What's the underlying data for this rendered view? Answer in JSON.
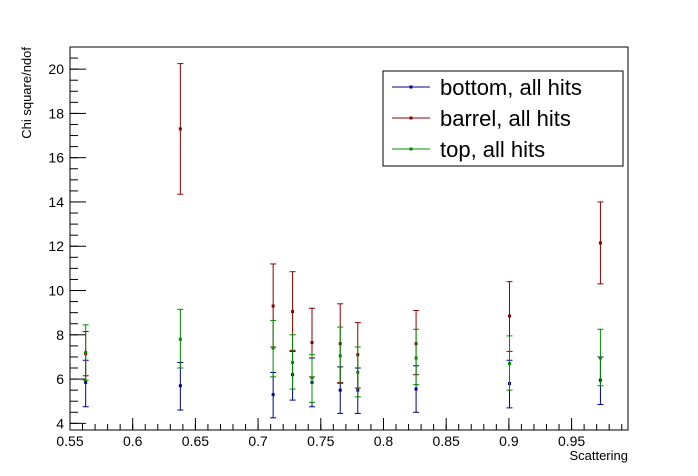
{
  "chart_data": {
    "type": "scatter",
    "xlabel": "Scattering",
    "ylabel": "Chi square/ndof",
    "xlim": [
      0.55,
      0.995
    ],
    "ylim": [
      3.7,
      21.0
    ],
    "x_ticks": [
      "0.55",
      "0.6",
      "0.65",
      "0.7",
      "0.75",
      "0.8",
      "0.85",
      "0.9",
      "0.95"
    ],
    "y_ticks": [
      "4",
      "6",
      "8",
      "10",
      "12",
      "14",
      "16",
      "18",
      "20"
    ],
    "legend_position": "top-right",
    "series": [
      {
        "name": "bottom, all hits",
        "color": "#00008b",
        "points": [
          {
            "x": 0.5625,
            "y": 5.85,
            "lo": 4.75,
            "hi": 6.85
          },
          {
            "x": 0.638,
            "y": 5.7,
            "lo": 4.6,
            "hi": 6.75
          },
          {
            "x": 0.712,
            "y": 5.3,
            "lo": 4.25,
            "hi": 6.3
          },
          {
            "x": 0.7275,
            "y": 6.2,
            "lo": 5.05,
            "hi": 7.25
          },
          {
            "x": 0.743,
            "y": 5.85,
            "lo": 4.75,
            "hi": 6.95
          },
          {
            "x": 0.7655,
            "y": 5.5,
            "lo": 4.45,
            "hi": 6.55
          },
          {
            "x": 0.7795,
            "y": 5.5,
            "lo": 4.45,
            "hi": 6.5
          },
          {
            "x": 0.826,
            "y": 5.55,
            "lo": 4.5,
            "hi": 6.6
          },
          {
            "x": 0.9005,
            "y": 5.8,
            "lo": 4.7,
            "hi": 6.85
          },
          {
            "x": 0.973,
            "y": 5.95,
            "lo": 4.85,
            "hi": 7.0
          }
        ]
      },
      {
        "name": "barrel, all hits",
        "color": "#8b0000",
        "points": [
          {
            "x": 0.5625,
            "y": 7.15,
            "lo": 6.15,
            "hi": 8.15
          },
          {
            "x": 0.638,
            "y": 17.3,
            "lo": 14.35,
            "hi": 20.25
          },
          {
            "x": 0.712,
            "y": 9.3,
            "lo": 7.45,
            "hi": 11.2
          },
          {
            "x": 0.7275,
            "y": 9.05,
            "lo": 7.3,
            "hi": 10.85
          },
          {
            "x": 0.743,
            "y": 7.65,
            "lo": 6.1,
            "hi": 9.2
          },
          {
            "x": 0.7655,
            "y": 7.6,
            "lo": 5.85,
            "hi": 9.4
          },
          {
            "x": 0.7795,
            "y": 7.1,
            "lo": 5.6,
            "hi": 8.55
          },
          {
            "x": 0.826,
            "y": 7.6,
            "lo": 6.2,
            "hi": 9.1
          },
          {
            "x": 0.9005,
            "y": 8.85,
            "lo": 7.25,
            "hi": 10.4
          },
          {
            "x": 0.973,
            "y": 12.15,
            "lo": 10.3,
            "hi": 14.0
          }
        ]
      },
      {
        "name": "top, all hits",
        "color": "#008b00",
        "points": [
          {
            "x": 0.5625,
            "y": 7.2,
            "lo": 5.95,
            "hi": 8.45
          },
          {
            "x": 0.638,
            "y": 7.8,
            "lo": 6.5,
            "hi": 9.15
          },
          {
            "x": 0.712,
            "y": 7.4,
            "lo": 6.1,
            "hi": 8.65
          },
          {
            "x": 0.7275,
            "y": 6.75,
            "lo": 5.55,
            "hi": 8.0
          },
          {
            "x": 0.743,
            "y": 6.05,
            "lo": 4.95,
            "hi": 7.1
          },
          {
            "x": 0.7655,
            "y": 7.05,
            "lo": 5.8,
            "hi": 8.35
          },
          {
            "x": 0.7795,
            "y": 6.3,
            "lo": 5.2,
            "hi": 7.45
          },
          {
            "x": 0.826,
            "y": 6.95,
            "lo": 5.75,
            "hi": 8.25
          },
          {
            "x": 0.9005,
            "y": 6.7,
            "lo": 5.5,
            "hi": 7.95
          },
          {
            "x": 0.973,
            "y": 6.95,
            "lo": 5.7,
            "hi": 8.25
          }
        ]
      }
    ]
  }
}
